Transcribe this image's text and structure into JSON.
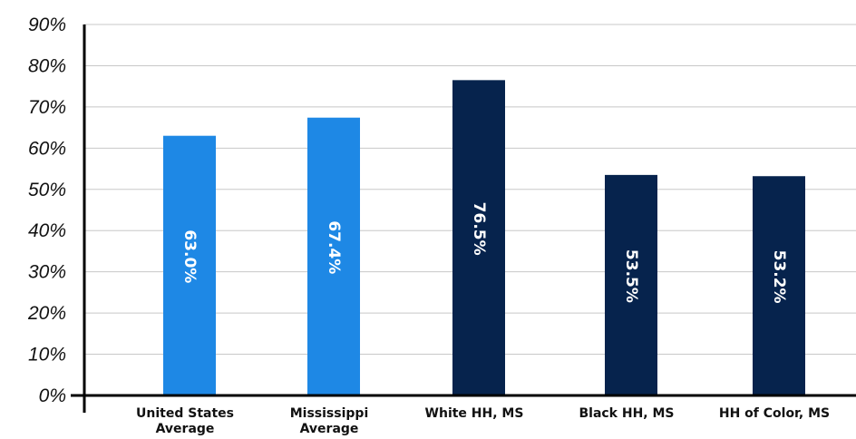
{
  "chart_data": {
    "type": "bar",
    "categories": [
      [
        "United States",
        "Average"
      ],
      [
        "Mississippi",
        "Average"
      ],
      [
        "White HH, MS"
      ],
      [
        "Black HH, MS"
      ],
      [
        "HH of Color, MS"
      ]
    ],
    "values": [
      63.0,
      67.4,
      76.5,
      53.5,
      53.2
    ],
    "data_labels": [
      "63.0%",
      "67.4%",
      "76.5%",
      "53.5%",
      "53.2%"
    ],
    "bar_colors": [
      "#1e88e5",
      "#1e88e5",
      "#06234d",
      "#06234d",
      "#06234d"
    ],
    "ylim": [
      0,
      90
    ],
    "yticks": [
      0,
      10,
      20,
      30,
      40,
      50,
      60,
      70,
      80,
      90
    ],
    "ytick_labels": [
      "0%",
      "10%",
      "20%",
      "30%",
      "40%",
      "50%",
      "60%",
      "70%",
      "80%",
      "90%"
    ],
    "grid": true,
    "title": "",
    "xlabel": "",
    "ylabel": ""
  }
}
